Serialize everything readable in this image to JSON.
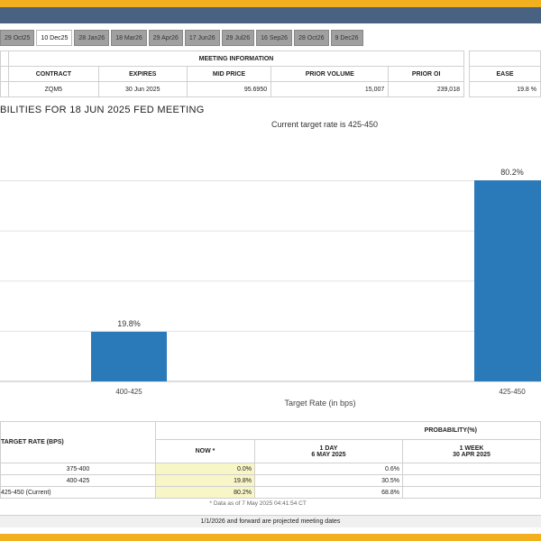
{
  "tabs": [
    "29 Oct25",
    "10 Dec25",
    "28 Jan26",
    "18 Mar26",
    "29 Apr26",
    "17 Jun26",
    "29 Jul26",
    "16 Sep26",
    "28 Oct26",
    "9 Dec26"
  ],
  "active_tab": 1,
  "meeting_info": {
    "section_header": "MEETING INFORMATION",
    "headers": [
      "CONTRACT",
      "EXPIRES",
      "MID PRICE",
      "PRIOR VOLUME",
      "PRIOR OI"
    ],
    "row": [
      "ZQM5",
      "30 Jun 2025",
      "95.6950",
      "15,007",
      "239,018"
    ],
    "side_header": "EASE",
    "side_value": "19.8 %"
  },
  "probabilities_title": "BILITIES FOR 18 JUN 2025 FED MEETING",
  "probabilities_subtitle": "Current target rate is 425-450",
  "chart_data": {
    "type": "bar",
    "title": "",
    "xlabel": "Target Rate (in bps)",
    "ylabel": "",
    "categories": [
      "400-425",
      "425-450"
    ],
    "values": [
      19.8,
      80.2
    ],
    "value_labels": [
      "19.8%",
      "80.2%"
    ],
    "ylim": [
      0,
      100
    ],
    "bar_color": "#2a7ab9",
    "grid": true
  },
  "prob_table": {
    "rate_header": "TARGET RATE (BPS)",
    "prob_header": "PROBABILITY(%)",
    "now_header": "NOW *",
    "day_header": "1 DAY",
    "day_date": "6 MAY 2025",
    "week_header": "1 WEEK",
    "week_date": "30 APR 2025",
    "rows": [
      {
        "rate": "375-400",
        "now": "0.0%",
        "day": "0.6%"
      },
      {
        "rate": "400-425",
        "now": "19.8%",
        "day": "30.5%"
      },
      {
        "rate": "425-450 (Current)",
        "now": "80.2%",
        "day": "68.8%"
      }
    ],
    "data_note": "* Data as of 7 May 2025 04:41:54 CT"
  },
  "footer_note": "1/1/2026 and forward are projected meeting dates",
  "colors": {
    "accent": "#f2b01e",
    "header": "#4a6281",
    "bar": "#2a7ab9"
  }
}
